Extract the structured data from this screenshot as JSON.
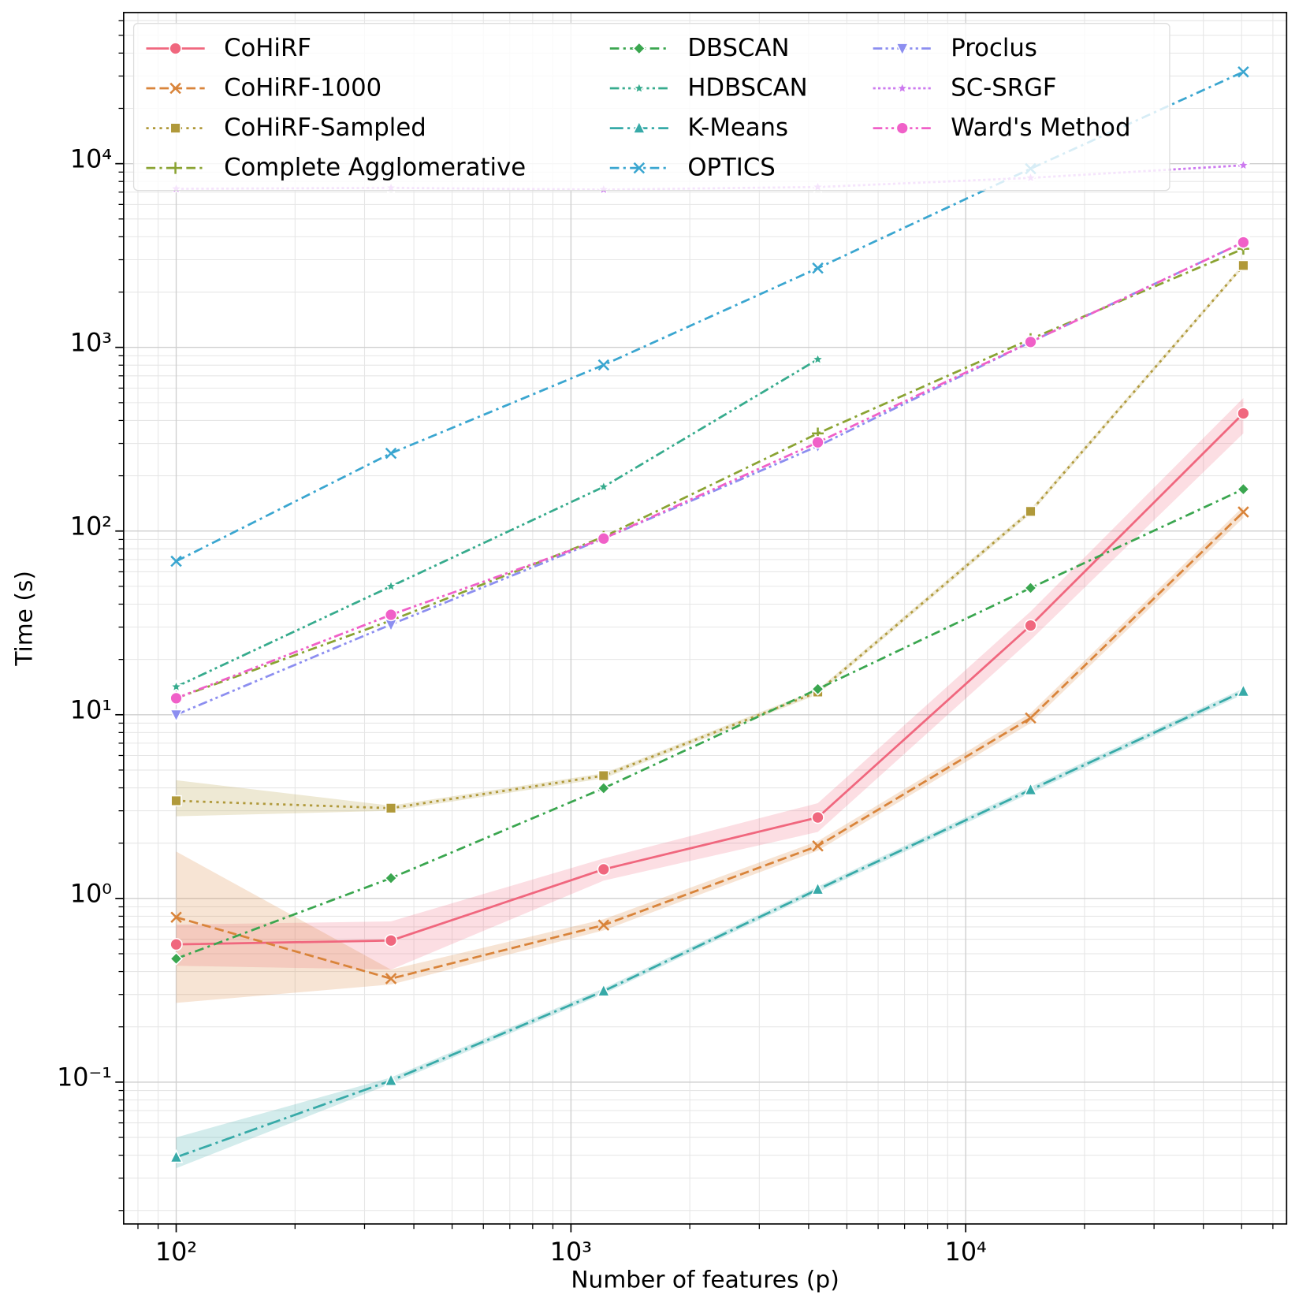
{
  "chart_data": {
    "type": "line",
    "xlabel": "Number of features (p)",
    "ylabel": "Time (s)",
    "xscale": "log",
    "yscale": "log",
    "grid": true,
    "legend": "upper left",
    "legend_columns": 3,
    "x": [
      100,
      350,
      1210,
      4220,
      14600,
      50500
    ],
    "xlim": [
      73.6,
      65000
    ],
    "ylim": [
      0.0169,
      66500
    ],
    "xticks": [
      {
        "value": 100,
        "label": "10²"
      },
      {
        "value": 1000,
        "label": "10³"
      },
      {
        "value": 10000,
        "label": "10⁴"
      }
    ],
    "yticks": [
      {
        "value": 0.1,
        "label": "10⁻¹"
      },
      {
        "value": 1,
        "label": "10⁰"
      },
      {
        "value": 10,
        "label": "10¹"
      },
      {
        "value": 100,
        "label": "10²"
      },
      {
        "value": 1000,
        "label": "10³"
      },
      {
        "value": 10000,
        "label": "10⁴"
      }
    ],
    "xminorticks": [
      80,
      90,
      200,
      300,
      400,
      500,
      600,
      700,
      800,
      900,
      2000,
      3000,
      4000,
      5000,
      6000,
      7000,
      8000,
      9000,
      20000,
      30000,
      40000,
      50000,
      60000
    ],
    "yminorticks": [
      0.02,
      0.03,
      0.04,
      0.05,
      0.06,
      0.07,
      0.08,
      0.09,
      0.2,
      0.3,
      0.4,
      0.5,
      0.6,
      0.7,
      0.8,
      0.9,
      2,
      3,
      4,
      5,
      6,
      7,
      8,
      9,
      20,
      30,
      40,
      50,
      60,
      70,
      80,
      90,
      200,
      300,
      400,
      500,
      600,
      700,
      800,
      900,
      2000,
      3000,
      4000,
      5000,
      6000,
      7000,
      8000,
      9000,
      20000,
      30000,
      40000,
      50000,
      60000
    ],
    "series": [
      {
        "name": "CoHiRF",
        "color": "#f0677e",
        "dash": "solid",
        "marker": "circle",
        "values": [
          0.562,
          0.59,
          1.44,
          2.76,
          30.6,
          437
        ],
        "lower": [
          0.43,
          0.41,
          1.25,
          2.3,
          25.5,
          340
        ],
        "upper": [
          0.72,
          0.75,
          1.65,
          3.3,
          36.5,
          530
        ]
      },
      {
        "name": "CoHiRF-1000",
        "color": "#d9843a",
        "dash": "dashed",
        "marker": "x",
        "values": [
          0.79,
          0.366,
          0.716,
          1.93,
          9.6,
          127
        ],
        "lower": [
          0.27,
          0.34,
          0.67,
          1.82,
          9.0,
          118
        ],
        "upper": [
          1.8,
          0.41,
          0.77,
          2.05,
          10.2,
          136
        ]
      },
      {
        "name": "CoHiRF-Sampled",
        "color": "#b0993a",
        "dash": "dotted",
        "marker": "square",
        "values": [
          3.4,
          3.1,
          4.66,
          13.3,
          128,
          2790
        ],
        "lower": [
          2.8,
          3.0,
          4.5,
          12.9,
          124,
          2720
        ],
        "upper": [
          4.4,
          3.2,
          4.8,
          13.7,
          132,
          2860
        ]
      },
      {
        "name": "Complete Agglomerative",
        "color": "#8aa332",
        "dash": "dashdot",
        "marker": "plus",
        "values": [
          12.3,
          32.6,
          93,
          340,
          1110,
          3440
        ]
      },
      {
        "name": "DBSCAN",
        "color": "#3aa64f",
        "dash": "dashdot",
        "marker": "diamond",
        "values": [
          0.47,
          1.29,
          3.98,
          13.8,
          49,
          169
        ]
      },
      {
        "name": "HDBSCAN",
        "color": "#36ab8d",
        "dash": "dashdotdot",
        "marker": "star",
        "values": [
          14.2,
          50,
          174,
          860,
          null,
          null
        ]
      },
      {
        "name": "K-Means",
        "color": "#37aaa8",
        "dash": "longdashdot",
        "marker": "triangle",
        "values": [
          0.039,
          0.102,
          0.313,
          1.12,
          3.9,
          13.4
        ],
        "lower": [
          0.034,
          0.098,
          0.302,
          1.08,
          3.75,
          12.9
        ],
        "upper": [
          0.05,
          0.106,
          0.324,
          1.16,
          4.05,
          13.9
        ]
      },
      {
        "name": "OPTICS",
        "color": "#3aa6d0",
        "dash": "dashdot",
        "marker": "x",
        "values": [
          68.5,
          265,
          802,
          2700,
          9390,
          31600
        ]
      },
      {
        "name": "Proclus",
        "color": "#8c8ef0",
        "dash": "dashdotdot",
        "marker": "triangle-down",
        "values": [
          10,
          31,
          91,
          290,
          1070,
          3730
        ]
      },
      {
        "name": "SC-SRGF",
        "color": "#cc79ef",
        "dash": "densedot",
        "marker": "star",
        "values": [
          7300,
          7380,
          7230,
          7460,
          8370,
          9800
        ]
      },
      {
        "name": "Ward's Method",
        "color": "#f060c8",
        "dash": "dashdotdot",
        "marker": "circle",
        "values": [
          12.3,
          35,
          91,
          304,
          1070,
          3730
        ]
      }
    ]
  }
}
